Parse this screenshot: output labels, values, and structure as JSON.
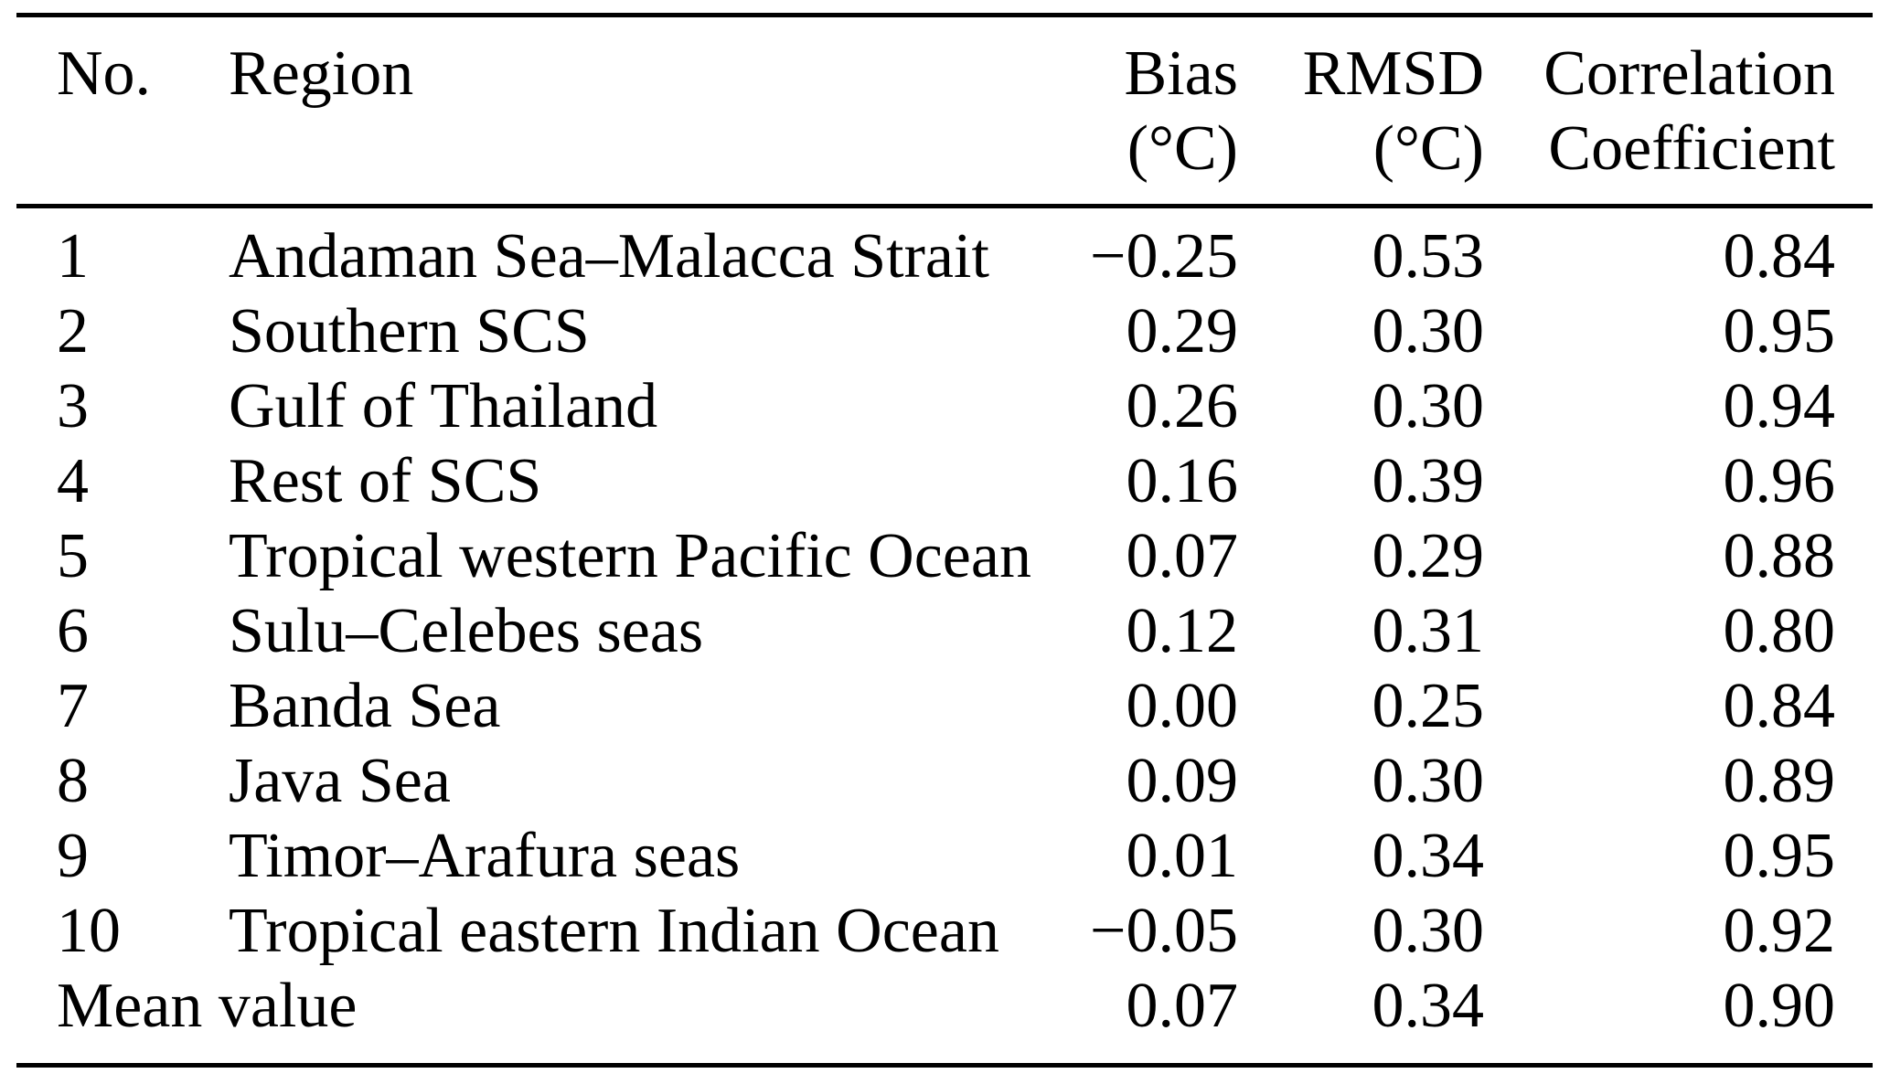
{
  "table": {
    "header": {
      "no": "No.",
      "region": "Region",
      "bias": "Bias",
      "bias_unit": "(°C)",
      "rmsd": "RMSD",
      "rmsd_unit": "(°C)",
      "corr": "Correlation",
      "corr_unit": "Coefficient"
    },
    "rows": [
      {
        "no": "1",
        "region": "Andaman Sea–Malacca Strait",
        "bias": "−0.25",
        "rmsd": "0.53",
        "corr": "0.84"
      },
      {
        "no": "2",
        "region": "Southern SCS",
        "bias": "0.29",
        "rmsd": "0.30",
        "corr": "0.95"
      },
      {
        "no": "3",
        "region": "Gulf of Thailand",
        "bias": "0.26",
        "rmsd": "0.30",
        "corr": "0.94"
      },
      {
        "no": "4",
        "region": "Rest of SCS",
        "bias": "0.16",
        "rmsd": "0.39",
        "corr": "0.96"
      },
      {
        "no": "5",
        "region": "Tropical western Pacific Ocean",
        "bias": "0.07",
        "rmsd": "0.29",
        "corr": "0.88"
      },
      {
        "no": "6",
        "region": "Sulu–Celebes seas",
        "bias": "0.12",
        "rmsd": "0.31",
        "corr": "0.80"
      },
      {
        "no": "7",
        "region": "Banda Sea",
        "bias": "0.00",
        "rmsd": "0.25",
        "corr": "0.84"
      },
      {
        "no": "8",
        "region": "Java Sea",
        "bias": "0.09",
        "rmsd": "0.30",
        "corr": "0.89"
      },
      {
        "no": "9",
        "region": "Timor–Arafura seas",
        "bias": "0.01",
        "rmsd": "0.34",
        "corr": "0.95"
      },
      {
        "no": "10",
        "region": "Tropical eastern Indian Ocean",
        "bias": "−0.05",
        "rmsd": "0.30",
        "corr": "0.92"
      }
    ],
    "summary_row": {
      "label": "Mean value",
      "bias": "0.07",
      "rmsd": "0.34",
      "corr": "0.90"
    }
  },
  "chart_data": {
    "type": "table",
    "columns": [
      "No.",
      "Region",
      "Bias (°C)",
      "RMSD (°C)",
      "Correlation Coefficient"
    ],
    "rows": [
      [
        "1",
        "Andaman Sea–Malacca Strait",
        -0.25,
        0.53,
        0.84
      ],
      [
        "2",
        "Southern SCS",
        0.29,
        0.3,
        0.95
      ],
      [
        "3",
        "Gulf of Thailand",
        0.26,
        0.3,
        0.94
      ],
      [
        "4",
        "Rest of SCS",
        0.16,
        0.39,
        0.96
      ],
      [
        "5",
        "Tropical western Pacific Ocean",
        0.07,
        0.29,
        0.88
      ],
      [
        "6",
        "Sulu–Celebes seas",
        0.12,
        0.31,
        0.8
      ],
      [
        "7",
        "Banda Sea",
        0.0,
        0.25,
        0.84
      ],
      [
        "8",
        "Java Sea",
        0.09,
        0.3,
        0.89
      ],
      [
        "9",
        "Timor–Arafura seas",
        0.01,
        0.34,
        0.95
      ],
      [
        "10",
        "Tropical eastern Indian Ocean",
        -0.05,
        0.3,
        0.92
      ],
      [
        "",
        "Mean value",
        0.07,
        0.34,
        0.9
      ]
    ]
  },
  "colors": {
    "text": "#000000",
    "background": "#ffffff",
    "rule": "#000000"
  }
}
